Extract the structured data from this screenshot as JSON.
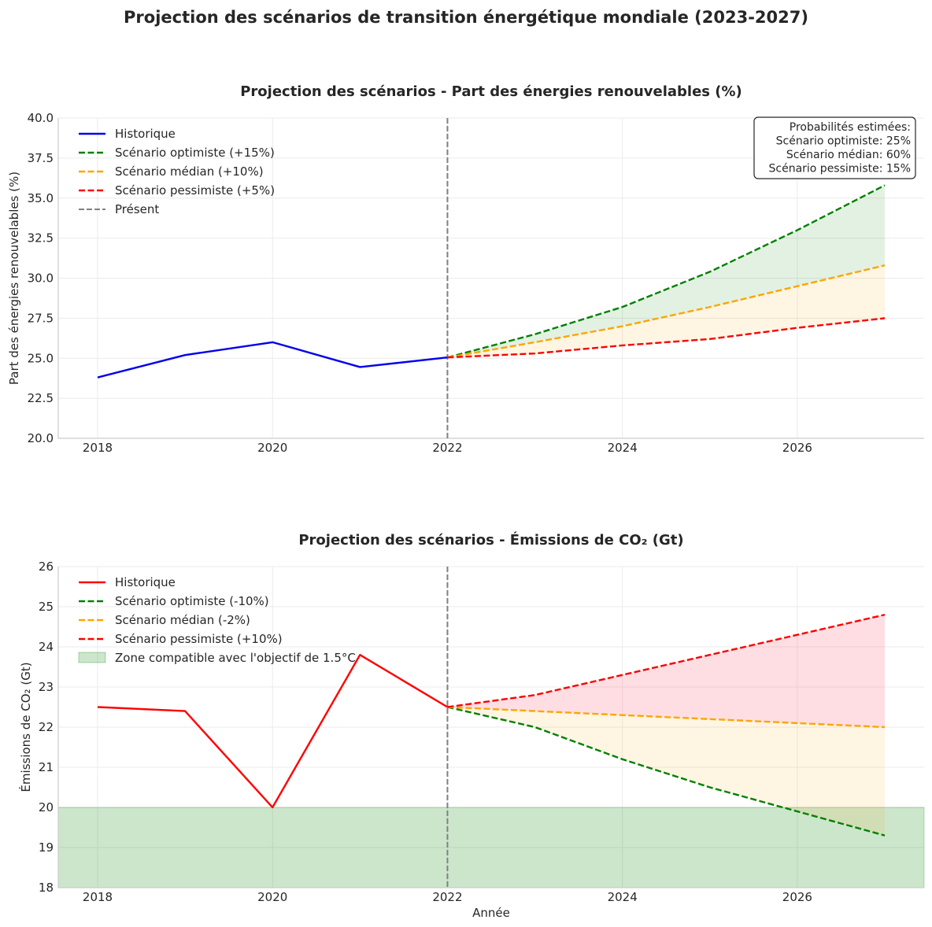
{
  "figure": {
    "suptitle": "Projection des scénarios de transition énergétique mondiale (2023-2027)"
  },
  "chart_data": [
    {
      "type": "line",
      "title": "Projection des scénarios - Part des énergies renouvelables (%)",
      "xlabel": "",
      "ylabel": "Part des énergies renouvelables (%)",
      "xlim": [
        2017.55,
        2027.45
      ],
      "ylim": [
        20.0,
        40.0
      ],
      "xticks": [
        2018,
        2020,
        2022,
        2024,
        2026
      ],
      "yticks": [
        20.0,
        22.5,
        25.0,
        27.5,
        30.0,
        32.5,
        35.0,
        37.5,
        40.0
      ],
      "ytick_decimals": 1,
      "present_x": 2022,
      "present_label": "Présent",
      "grid": true,
      "legend_position": "upper-left",
      "series": [
        {
          "name": "Historique",
          "color": "#0000ee",
          "style": "solid",
          "x": [
            2018,
            2019,
            2020,
            2021,
            2022
          ],
          "y": [
            23.8,
            25.2,
            26.0,
            24.45,
            25.05
          ]
        },
        {
          "name": "Scénario optimiste (+15%)",
          "color": "#008000",
          "style": "dashed",
          "x": [
            2022,
            2023,
            2024,
            2025,
            2026,
            2027
          ],
          "y": [
            25.05,
            26.5,
            28.2,
            30.4,
            33.0,
            35.8
          ]
        },
        {
          "name": "Scénario médian (+10%)",
          "color": "#ffa500",
          "style": "dashed",
          "x": [
            2022,
            2023,
            2024,
            2025,
            2026,
            2027
          ],
          "y": [
            25.05,
            26.0,
            27.0,
            28.2,
            29.5,
            30.8
          ]
        },
        {
          "name": "Scénario pessimiste (+5%)",
          "color": "#ff0000",
          "style": "dashed",
          "x": [
            2022,
            2023,
            2024,
            2025,
            2026,
            2027
          ],
          "y": [
            25.05,
            25.3,
            25.8,
            26.2,
            26.9,
            27.5
          ]
        }
      ],
      "fills": [
        {
          "between": [
            1,
            2
          ],
          "color": "#008000",
          "opacity": 0.11
        },
        {
          "between": [
            2,
            3
          ],
          "color": "#ffa500",
          "opacity": 0.11
        }
      ],
      "hbands": [],
      "annotation_box": {
        "lines": [
          "Probabilités estimées:",
          "Scénario optimiste: 25%",
          "Scénario médian: 60%",
          "Scénario pessimiste: 15%"
        ],
        "position": "upper-right"
      }
    },
    {
      "type": "line",
      "title": "Projection des scénarios - Émissions de CO₂ (Gt)",
      "xlabel": "Année",
      "ylabel": "Émissions de CO₂ (Gt)",
      "xlim": [
        2017.55,
        2027.45
      ],
      "ylim": [
        18,
        26
      ],
      "xticks": [
        2018,
        2020,
        2022,
        2024,
        2026
      ],
      "yticks": [
        18,
        19,
        20,
        21,
        22,
        23,
        24,
        25,
        26
      ],
      "ytick_decimals": 0,
      "present_x": 2022,
      "present_label": "",
      "grid": true,
      "legend_position": "upper-left",
      "series": [
        {
          "name": "Historique",
          "color": "#ff0000",
          "style": "solid",
          "x": [
            2018,
            2019,
            2020,
            2021,
            2022
          ],
          "y": [
            22.5,
            22.4,
            20.0,
            23.8,
            22.5
          ]
        },
        {
          "name": "Scénario optimiste (-10%)",
          "color": "#008000",
          "style": "dashed",
          "x": [
            2022,
            2023,
            2024,
            2025,
            2026,
            2027
          ],
          "y": [
            22.5,
            22.0,
            21.2,
            20.5,
            19.9,
            19.3
          ]
        },
        {
          "name": "Scénario médian (-2%)",
          "color": "#ffa500",
          "style": "dashed",
          "x": [
            2022,
            2023,
            2024,
            2025,
            2026,
            2027
          ],
          "y": [
            22.5,
            22.4,
            22.3,
            22.2,
            22.1,
            22.0
          ]
        },
        {
          "name": "Scénario pessimiste (+10%)",
          "color": "#ff0000",
          "style": "dashed",
          "x": [
            2022,
            2023,
            2024,
            2025,
            2026,
            2027
          ],
          "y": [
            22.5,
            22.8,
            23.3,
            23.8,
            24.3,
            24.8
          ]
        }
      ],
      "fills": [
        {
          "between": [
            2,
            3
          ],
          "color": "#ff6b81",
          "opacity": 0.22
        },
        {
          "between": [
            1,
            2
          ],
          "color": "#ffa500",
          "opacity": 0.11
        }
      ],
      "hbands": [
        {
          "y0": 18,
          "y1": 20,
          "color": "#008000",
          "opacity": 0.2,
          "name": "Zone compatible avec l'objectif de 1.5°C"
        }
      ],
      "annotation_box": null
    }
  ]
}
